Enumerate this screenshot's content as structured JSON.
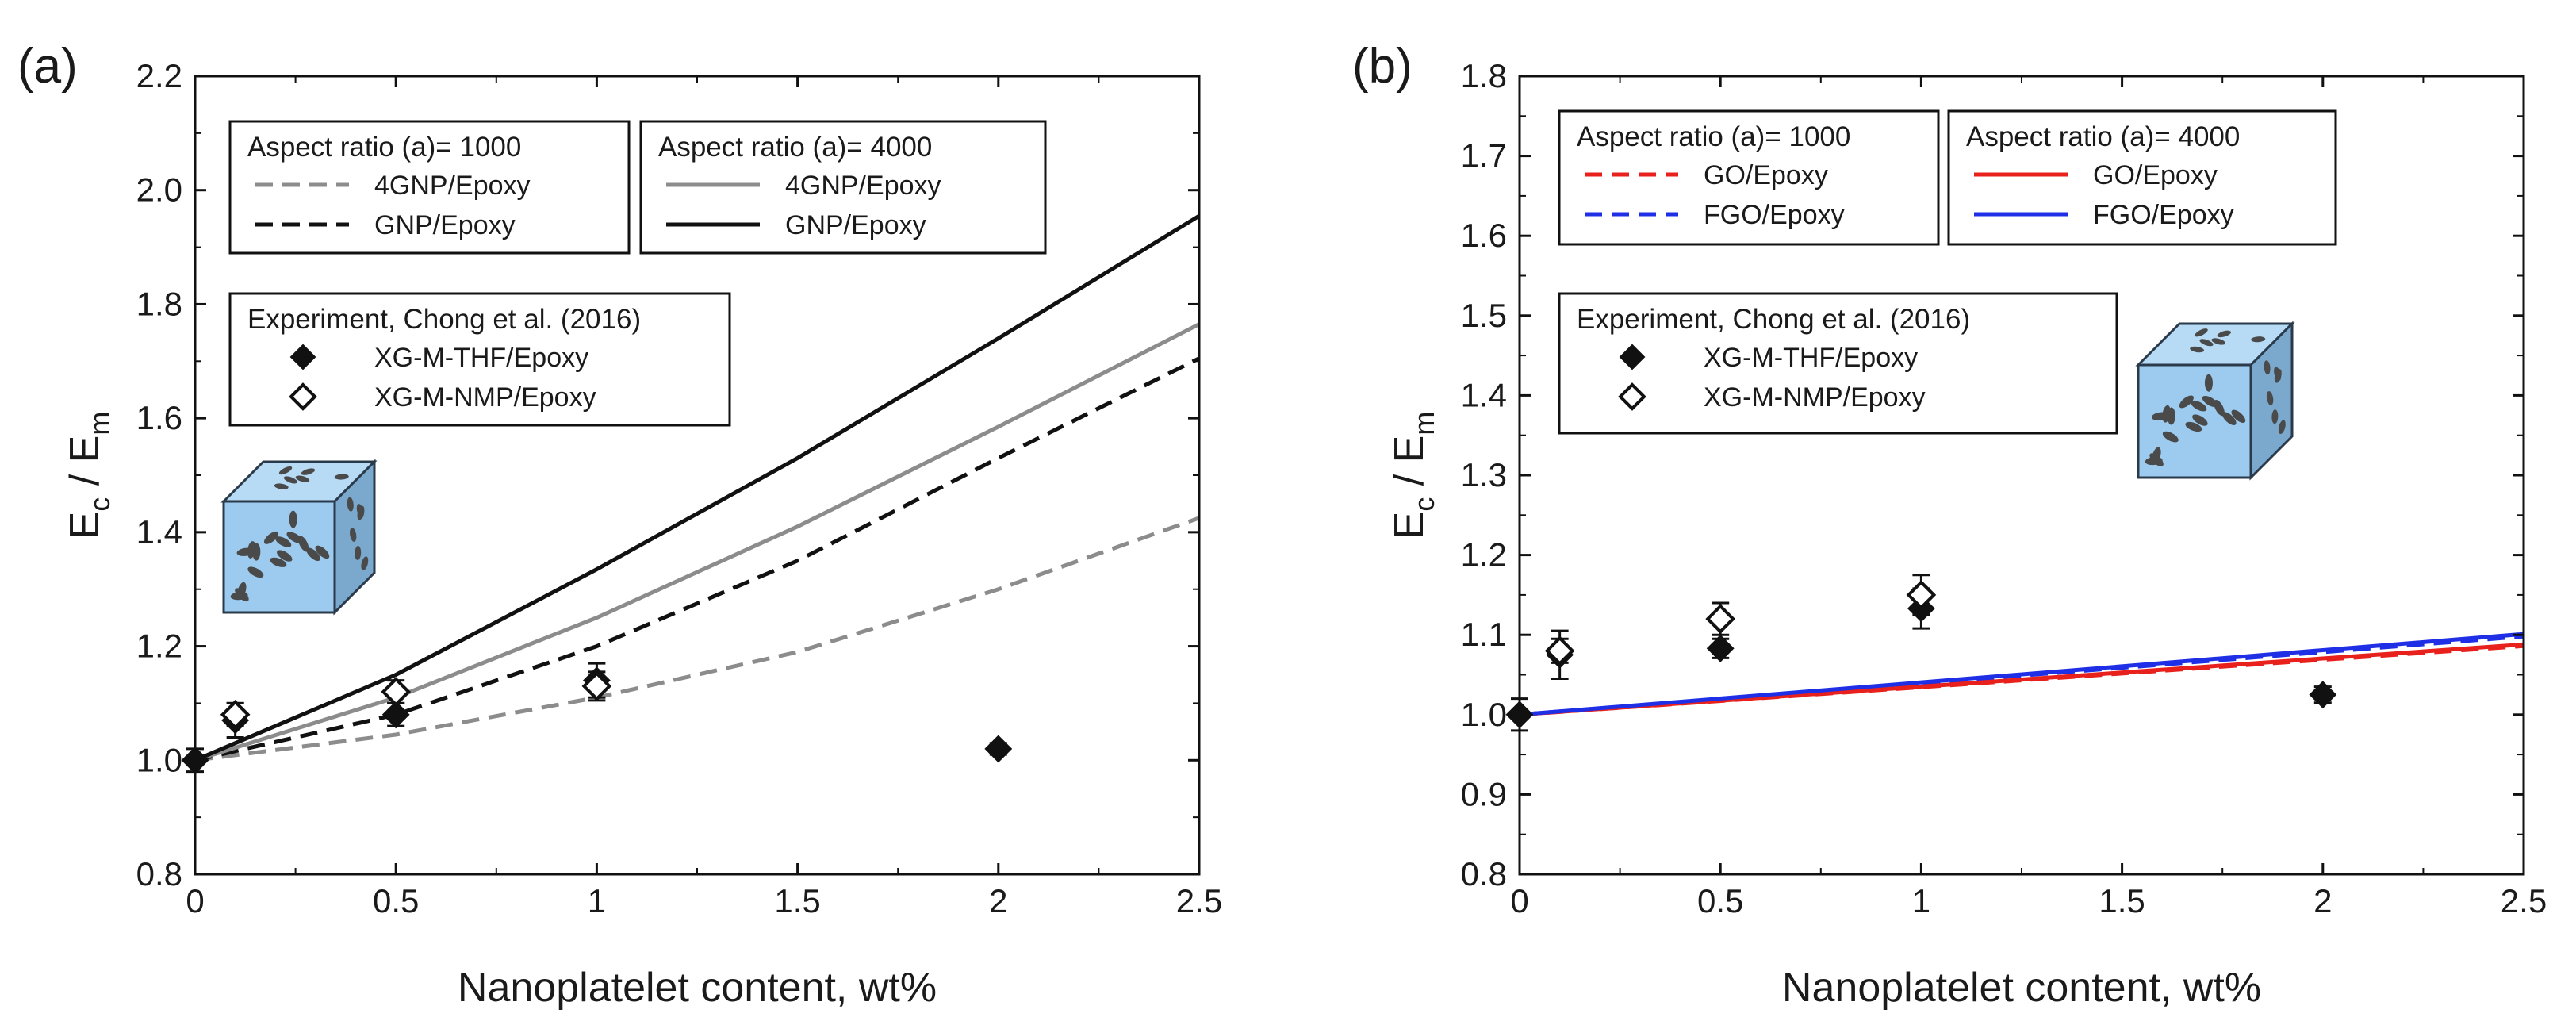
{
  "figure": {
    "panel_labels": [
      "(a)",
      "(b)"
    ]
  },
  "chart_data": [
    {
      "type": "line",
      "panel": "(a)",
      "xlabel": "Nanoplatelet content, wt%",
      "ylabel_main": "E",
      "ylabel_sub_c": "c",
      "ylabel_sep": " / E",
      "ylabel_sub_m": "m",
      "xlim": [
        0,
        2.5
      ],
      "ylim": [
        0.8,
        2.2
      ],
      "xticks": [
        0,
        0.5,
        1,
        1.5,
        2,
        2.5
      ],
      "xtick_labels": [
        "0",
        "0.5",
        "1",
        "1.5",
        "2",
        "2.5"
      ],
      "yticks": [
        0.8,
        1.0,
        1.2,
        1.4,
        1.6,
        1.8,
        2.0,
        2.2
      ],
      "ytick_labels": [
        "0.8",
        "1.0",
        "1.2",
        "1.4",
        "1.6",
        "1.8",
        "2.0",
        "2.2"
      ],
      "legend_groups": [
        {
          "title": "Aspect ratio (a)= 1000",
          "entries": [
            "4GNP/Epoxy",
            "GNP/Epoxy"
          ]
        },
        {
          "title": "Aspect ratio (a)= 4000",
          "entries": [
            "4GNP/Epoxy",
            "GNP/Epoxy"
          ]
        },
        {
          "title": "Experiment, Chong et al. (2016)",
          "entries": [
            "XG-M-THF/Epoxy",
            "XG-M-NMP/Epoxy"
          ]
        }
      ],
      "series": [
        {
          "name": "4GNP/Epoxy (a=1000)",
          "color": "#8c8c8c",
          "dash": true,
          "x": [
            0,
            0.5,
            1,
            1.5,
            2,
            2.5
          ],
          "y": [
            1.0,
            1.045,
            1.11,
            1.19,
            1.3,
            1.425
          ]
        },
        {
          "name": "GNP/Epoxy (a=1000)",
          "color": "#111111",
          "dash": true,
          "x": [
            0,
            0.5,
            1,
            1.5,
            2,
            2.5
          ],
          "y": [
            1.0,
            1.08,
            1.2,
            1.35,
            1.53,
            1.705
          ]
        },
        {
          "name": "4GNP/Epoxy (a=4000)",
          "color": "#8c8c8c",
          "dash": false,
          "x": [
            0,
            0.5,
            1,
            1.5,
            2,
            2.5
          ],
          "y": [
            1.0,
            1.11,
            1.25,
            1.41,
            1.585,
            1.765
          ]
        },
        {
          "name": "GNP/Epoxy (a=4000)",
          "color": "#111111",
          "dash": false,
          "x": [
            0,
            0.5,
            1,
            1.5,
            2,
            2.5
          ],
          "y": [
            1.0,
            1.15,
            1.335,
            1.53,
            1.74,
            1.955
          ]
        }
      ],
      "points": [
        {
          "name": "XG-M-THF/Epoxy",
          "filled": true,
          "x": [
            0,
            0.1,
            0.5,
            1,
            2
          ],
          "y": [
            1.0,
            1.07,
            1.08,
            1.14,
            1.02
          ],
          "err": [
            0.02,
            0.03,
            0.02,
            0.03,
            0.01
          ]
        },
        {
          "name": "XG-M-NMP/Epoxy",
          "filled": false,
          "x": [
            0.1,
            0.5,
            1
          ],
          "y": [
            1.08,
            1.12,
            1.13
          ],
          "err": [
            0.02,
            0.02,
            0.025
          ]
        }
      ]
    },
    {
      "type": "line",
      "panel": "(b)",
      "xlabel": "Nanoplatelet content, wt%",
      "ylabel_main": "E",
      "ylabel_sub_c": "c",
      "ylabel_sep": " / E",
      "ylabel_sub_m": "m",
      "xlim": [
        0,
        2.5
      ],
      "ylim": [
        0.8,
        1.8
      ],
      "xticks": [
        0,
        0.5,
        1,
        1.5,
        2,
        2.5
      ],
      "xtick_labels": [
        "0",
        "0.5",
        "1",
        "1.5",
        "2",
        "2.5"
      ],
      "yticks": [
        0.8,
        0.9,
        1.0,
        1.1,
        1.2,
        1.3,
        1.4,
        1.5,
        1.6,
        1.7,
        1.8
      ],
      "ytick_labels": [
        "0.8",
        "0.9",
        "1.0",
        "1.1",
        "1.2",
        "1.3",
        "1.4",
        "1.5",
        "1.6",
        "1.7",
        "1.8"
      ],
      "legend_groups": [
        {
          "title": "Aspect ratio (a)= 1000",
          "entries": [
            "GO/Epoxy",
            "FGO/Epoxy"
          ]
        },
        {
          "title": "Aspect ratio (a)= 4000",
          "entries": [
            "GO/Epoxy",
            "FGO/Epoxy"
          ]
        },
        {
          "title": "Experiment, Chong et al. (2016)",
          "entries": [
            "XG-M-THF/Epoxy",
            "XG-M-NMP/Epoxy"
          ]
        }
      ],
      "series": [
        {
          "name": "GO/Epoxy (a=1000)",
          "color": "#e8211c",
          "dash": true,
          "x": [
            0,
            2.5
          ],
          "y": [
            1.0,
            1.086
          ]
        },
        {
          "name": "FGO/Epoxy (a=1000)",
          "color": "#1f2fe6",
          "dash": true,
          "x": [
            0,
            2.5
          ],
          "y": [
            1.0,
            1.098
          ]
        },
        {
          "name": "GO/Epoxy (a=4000)",
          "color": "#e8211c",
          "dash": false,
          "x": [
            0,
            2.5
          ],
          "y": [
            1.0,
            1.088
          ]
        },
        {
          "name": "FGO/Epoxy (a=4000)",
          "color": "#1f2fe6",
          "dash": false,
          "x": [
            0,
            2.5
          ],
          "y": [
            1.0,
            1.101
          ]
        }
      ],
      "points": [
        {
          "name": "XG-M-THF/Epoxy",
          "filled": true,
          "x": [
            0,
            0.1,
            0.5,
            1,
            2
          ],
          "y": [
            1.0,
            1.075,
            1.083,
            1.133,
            1.025
          ],
          "err": [
            0.02,
            0.03,
            0.012,
            0.025,
            0.01
          ]
        },
        {
          "name": "XG-M-NMP/Epoxy",
          "filled": false,
          "x": [
            0.1,
            0.5,
            1
          ],
          "y": [
            1.08,
            1.12,
            1.15
          ],
          "err": [
            0.015,
            0.02,
            0.025
          ]
        }
      ]
    }
  ]
}
